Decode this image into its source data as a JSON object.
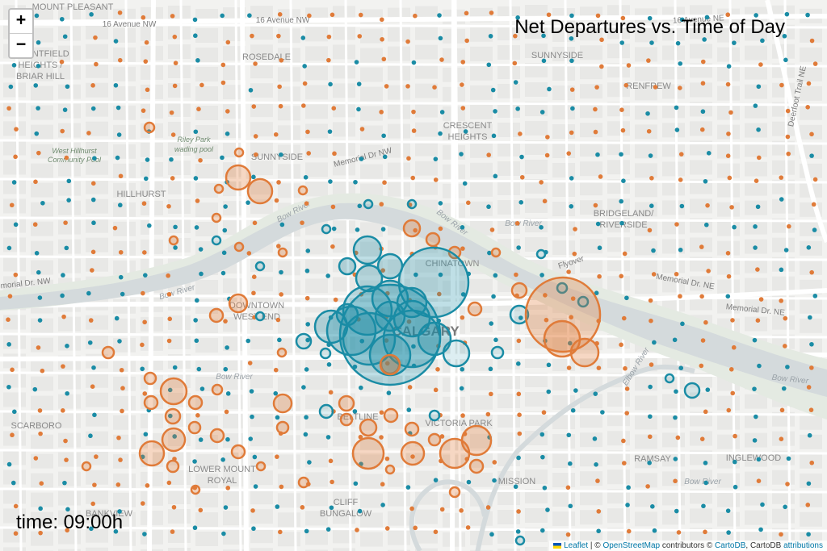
{
  "zoom": {
    "in_label": "+",
    "out_label": "−"
  },
  "title": "Net Departures vs. Time of Day",
  "time_label": "time: 09:00h",
  "attribution": {
    "leaflet": "Leaflet",
    "sep1": " | © ",
    "osm": "OpenStreetMap",
    "contrib": " contributors © ",
    "carto": "CartoDB",
    "carto_text": ", CartoDB ",
    "attributions": "attributions"
  },
  "colors": {
    "departures": "#e07b39",
    "arrivals": "#1a8ca5",
    "water": "#d4dadc",
    "park": "#e4eae2",
    "road": "#ffffff",
    "block": "#e8e8e6"
  },
  "labels": [
    {
      "text": "16 Avenue NW",
      "kind": "road"
    },
    {
      "text": "16 Avenue NW",
      "kind": "road"
    },
    {
      "text": "16 Avenue NE",
      "kind": "road"
    },
    {
      "text": "MOUNT PLEASANT",
      "kind": "hood"
    },
    {
      "text": "ROSEDALE",
      "kind": "hood"
    },
    {
      "text": "RENFREW",
      "kind": "hood"
    },
    {
      "text": "CRESCENT",
      "kind": "hood"
    },
    {
      "text": "HEIGHTS",
      "kind": "hood"
    },
    {
      "text": "SUNNYSIDE",
      "kind": "hood"
    },
    {
      "text": "HILLHURST",
      "kind": "hood"
    },
    {
      "text": "BRIDGELAND/",
      "kind": "hood"
    },
    {
      "text": "RIVERSIDE",
      "kind": "hood"
    },
    {
      "text": "CHINATOWN",
      "kind": "hood"
    },
    {
      "text": "DOWNTOWN",
      "kind": "hood"
    },
    {
      "text": "WEST END",
      "kind": "hood"
    },
    {
      "text": "CALGARY",
      "kind": "city"
    },
    {
      "text": "BELTLINE",
      "kind": "hood"
    },
    {
      "text": "VICTORIA PARK",
      "kind": "hood"
    },
    {
      "text": "SCARBORO",
      "kind": "hood"
    },
    {
      "text": "LOWER MOUNT",
      "kind": "hood"
    },
    {
      "text": "ROYAL",
      "kind": "hood"
    },
    {
      "text": "RAMSAY",
      "kind": "hood"
    },
    {
      "text": "INGLEWOOD",
      "kind": "hood"
    },
    {
      "text": "CLIFF",
      "kind": "hood"
    },
    {
      "text": "BUNGALOW",
      "kind": "hood"
    },
    {
      "text": "MISSION",
      "kind": "hood"
    },
    {
      "text": "BANKVIEW",
      "kind": "hood"
    },
    {
      "text": "Bow River",
      "kind": "water"
    },
    {
      "text": "Bow River",
      "kind": "water"
    },
    {
      "text": "Bow River",
      "kind": "water"
    },
    {
      "text": "Bow River",
      "kind": "water"
    },
    {
      "text": "Bow River",
      "kind": "water"
    },
    {
      "text": "Bow River",
      "kind": "water"
    },
    {
      "text": "Memorial Dr NW",
      "kind": "road"
    },
    {
      "text": "Memorial Dr. NW",
      "kind": "road"
    },
    {
      "text": "Memorial Dr. NE",
      "kind": "road"
    },
    {
      "text": "Memorial Dr. NE",
      "kind": "road"
    },
    {
      "text": "Deerfoot Trail NE",
      "kind": "road"
    },
    {
      "text": "Elbow River",
      "kind": "water"
    },
    {
      "text": "Riley Park",
      "kind": "park"
    },
    {
      "text": "wading pool",
      "kind": "park"
    },
    {
      "text": "West Hillhurst",
      "kind": "park"
    },
    {
      "text": "Community Pool",
      "kind": "park"
    },
    {
      "text": "SUNNYSIDE",
      "kind": "hood"
    },
    {
      "text": "Flyover",
      "kind": "road"
    },
    {
      "text": "Bow River",
      "kind": "water"
    },
    {
      "text": "MOUNTFIELD",
      "kind": "hood"
    },
    {
      "text": "HEIGHTS /",
      "kind": "hood"
    },
    {
      "text": "BRIAR HILL",
      "kind": "hood"
    }
  ]
}
